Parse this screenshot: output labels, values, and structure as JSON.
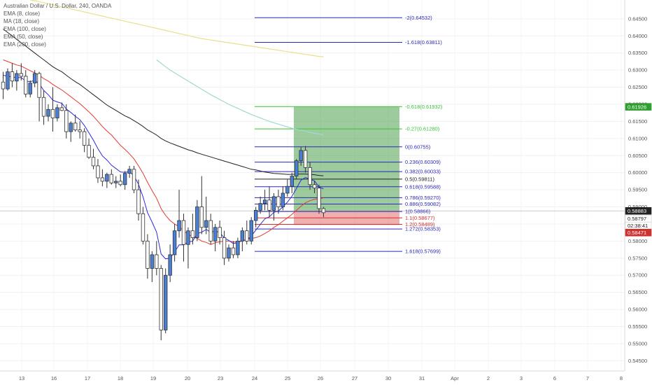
{
  "chart_data": {
    "type": "candlestick",
    "title": "Australian Dollar / U.S. Dollar, 240, OANDA",
    "indicators": [
      {
        "label": "EMA (8, close)",
        "color": "#2a2ae0"
      },
      {
        "label": "MA (18, close)",
        "color": "#e23b2e"
      },
      {
        "label": "EMA (100, close)",
        "color": "#222222"
      },
      {
        "label": "EMA (50, close)",
        "color": "#9fd9d1"
      },
      {
        "label": "EMA (200, close)",
        "color": "#e8e08a"
      }
    ],
    "ylim": [
      0.542,
      0.6505
    ],
    "yticks": [
      "0.64500",
      "0.64000",
      "0.63500",
      "0.63000",
      "0.62500",
      "0.62000",
      "0.61500",
      "0.61000",
      "0.60500",
      "0.60000",
      "0.59500",
      "0.59000",
      "0.58500",
      "0.58000",
      "0.57500",
      "0.57000",
      "0.56500",
      "0.56000",
      "0.55500",
      "0.55000",
      "0.54500"
    ],
    "xticks": [
      "13",
      "16",
      "17",
      "18",
      "19",
      "20",
      "23",
      "24",
      "25",
      "26",
      "27",
      "30",
      "31",
      "Apr",
      "2",
      "3",
      "6",
      "7",
      "8"
    ],
    "price_tags": [
      {
        "label": "0.61926",
        "value": 0.61926,
        "color": "#2e9e2e"
      },
      {
        "label": "0.58883",
        "value": 0.58883,
        "color": "#222222"
      },
      {
        "label": "0.58797",
        "value": 0.58797,
        "color": "#222222"
      },
      {
        "label": "02:38:41",
        "value": 0.58675,
        "color": "#222222"
      },
      {
        "label": "0.58471",
        "value": 0.58471,
        "color": "#d0312d"
      }
    ],
    "fib_levels": [
      {
        "label": "-2(0.64532)",
        "value": 0.64532,
        "color": "#2a2ab8"
      },
      {
        "label": "-1.618(0.63811)",
        "value": 0.63811,
        "color": "#2a2ab8"
      },
      {
        "label": "-0.618(0.61932)",
        "value": 0.61932,
        "color": "#35c235"
      },
      {
        "label": "-0.27(0.61280)",
        "value": 0.6128,
        "color": "#35c235"
      },
      {
        "label": "0(0.60755)",
        "value": 0.60755,
        "color": "#2a2ab8"
      },
      {
        "label": "0.236(0.60309)",
        "value": 0.60309,
        "color": "#2a2ab8"
      },
      {
        "label": "0.382(0.60033)",
        "value": 0.60033,
        "color": "#2a2ab8"
      },
      {
        "label": "0.5(0.59811)",
        "value": 0.59811,
        "color": "#222222"
      },
      {
        "label": "0.618(0.59588)",
        "value": 0.59588,
        "color": "#2a2ab8"
      },
      {
        "label": "0.786(0.59270)",
        "value": 0.5927,
        "color": "#2a2ab8"
      },
      {
        "label": "0.886(0.59082)",
        "value": 0.59082,
        "color": "#2a2ab8"
      },
      {
        "label": "1(0.58866)",
        "value": 0.58866,
        "color": "#2a2ab8"
      },
      {
        "label": "1.1(0.58677)",
        "value": 0.58677,
        "color": "#d0312d"
      },
      {
        "label": "1.2(0.58489)",
        "value": 0.58489,
        "color": "#d0312d"
      },
      {
        "label": "1.272(0.58353)",
        "value": 0.58353,
        "color": "#2a2ab8"
      },
      {
        "label": "1.618(0.57699)",
        "value": 0.57699,
        "color": "#2a2ab8"
      }
    ],
    "position_box": {
      "entry": 0.58883,
      "target": 0.61926,
      "stop": 0.58471
    },
    "candles": [
      {
        "o": 0.6265,
        "h": 0.6295,
        "l": 0.6215,
        "c": 0.6245
      },
      {
        "o": 0.6245,
        "h": 0.6305,
        "l": 0.624,
        "c": 0.6295
      },
      {
        "o": 0.6295,
        "h": 0.632,
        "l": 0.625,
        "c": 0.6268
      },
      {
        "o": 0.6268,
        "h": 0.63,
        "l": 0.624,
        "c": 0.629
      },
      {
        "o": 0.629,
        "h": 0.632,
        "l": 0.627,
        "c": 0.6282
      },
      {
        "o": 0.6282,
        "h": 0.63,
        "l": 0.622,
        "c": 0.623
      },
      {
        "o": 0.623,
        "h": 0.627,
        "l": 0.622,
        "c": 0.6262
      },
      {
        "o": 0.6262,
        "h": 0.63,
        "l": 0.625,
        "c": 0.629
      },
      {
        "o": 0.629,
        "h": 0.6295,
        "l": 0.615,
        "c": 0.622
      },
      {
        "o": 0.622,
        "h": 0.624,
        "l": 0.614,
        "c": 0.6165
      },
      {
        "o": 0.6165,
        "h": 0.62,
        "l": 0.615,
        "c": 0.6185
      },
      {
        "o": 0.6185,
        "h": 0.625,
        "l": 0.612,
        "c": 0.616
      },
      {
        "o": 0.616,
        "h": 0.62,
        "l": 0.615,
        "c": 0.619
      },
      {
        "o": 0.619,
        "h": 0.6205,
        "l": 0.618,
        "c": 0.6182
      },
      {
        "o": 0.6182,
        "h": 0.62,
        "l": 0.61,
        "c": 0.612
      },
      {
        "o": 0.612,
        "h": 0.615,
        "l": 0.609,
        "c": 0.6145
      },
      {
        "o": 0.6145,
        "h": 0.617,
        "l": 0.612,
        "c": 0.6125
      },
      {
        "o": 0.6125,
        "h": 0.615,
        "l": 0.61,
        "c": 0.612
      },
      {
        "o": 0.612,
        "h": 0.613,
        "l": 0.606,
        "c": 0.608
      },
      {
        "o": 0.608,
        "h": 0.61,
        "l": 0.604,
        "c": 0.6045
      },
      {
        "o": 0.6045,
        "h": 0.607,
        "l": 0.601,
        "c": 0.602
      },
      {
        "o": 0.602,
        "h": 0.604,
        "l": 0.597,
        "c": 0.5985
      },
      {
        "o": 0.5985,
        "h": 0.601,
        "l": 0.596,
        "c": 0.5975
      },
      {
        "o": 0.5975,
        "h": 0.6,
        "l": 0.5955,
        "c": 0.5995
      },
      {
        "o": 0.5995,
        "h": 0.601,
        "l": 0.5965,
        "c": 0.597
      },
      {
        "o": 0.597,
        "h": 0.599,
        "l": 0.5955,
        "c": 0.5975
      },
      {
        "o": 0.5975,
        "h": 0.5995,
        "l": 0.596,
        "c": 0.5965
      },
      {
        "o": 0.5965,
        "h": 0.6005,
        "l": 0.595,
        "c": 0.5998
      },
      {
        "o": 0.5998,
        "h": 0.602,
        "l": 0.5985,
        "c": 0.601
      },
      {
        "o": 0.601,
        "h": 0.602,
        "l": 0.594,
        "c": 0.595
      },
      {
        "o": 0.595,
        "h": 0.598,
        "l": 0.586,
        "c": 0.588
      },
      {
        "o": 0.588,
        "h": 0.59,
        "l": 0.579,
        "c": 0.58
      },
      {
        "o": 0.58,
        "h": 0.582,
        "l": 0.569,
        "c": 0.572
      },
      {
        "o": 0.572,
        "h": 0.577,
        "l": 0.568,
        "c": 0.576
      },
      {
        "o": 0.576,
        "h": 0.58,
        "l": 0.57,
        "c": 0.572
      },
      {
        "o": 0.572,
        "h": 0.573,
        "l": 0.551,
        "c": 0.554
      },
      {
        "o": 0.554,
        "h": 0.572,
        "l": 0.553,
        "c": 0.57
      },
      {
        "o": 0.57,
        "h": 0.579,
        "l": 0.568,
        "c": 0.576
      },
      {
        "o": 0.576,
        "h": 0.585,
        "l": 0.574,
        "c": 0.583
      },
      {
        "o": 0.583,
        "h": 0.595,
        "l": 0.581,
        "c": 0.586
      },
      {
        "o": 0.586,
        "h": 0.588,
        "l": 0.574,
        "c": 0.579
      },
      {
        "o": 0.579,
        "h": 0.584,
        "l": 0.572,
        "c": 0.583
      },
      {
        "o": 0.583,
        "h": 0.588,
        "l": 0.579,
        "c": 0.581
      },
      {
        "o": 0.581,
        "h": 0.592,
        "l": 0.58,
        "c": 0.59
      },
      {
        "o": 0.59,
        "h": 0.599,
        "l": 0.582,
        "c": 0.584
      },
      {
        "o": 0.584,
        "h": 0.593,
        "l": 0.582,
        "c": 0.586
      },
      {
        "o": 0.586,
        "h": 0.588,
        "l": 0.579,
        "c": 0.58
      },
      {
        "o": 0.58,
        "h": 0.585,
        "l": 0.577,
        "c": 0.584
      },
      {
        "o": 0.584,
        "h": 0.586,
        "l": 0.579,
        "c": 0.581
      },
      {
        "o": 0.581,
        "h": 0.583,
        "l": 0.573,
        "c": 0.575
      },
      {
        "o": 0.575,
        "h": 0.579,
        "l": 0.574,
        "c": 0.578
      },
      {
        "o": 0.578,
        "h": 0.58,
        "l": 0.575,
        "c": 0.576
      },
      {
        "o": 0.576,
        "h": 0.581,
        "l": 0.575,
        "c": 0.58
      },
      {
        "o": 0.58,
        "h": 0.584,
        "l": 0.577,
        "c": 0.583
      },
      {
        "o": 0.583,
        "h": 0.586,
        "l": 0.579,
        "c": 0.58
      },
      {
        "o": 0.58,
        "h": 0.587,
        "l": 0.579,
        "c": 0.586
      },
      {
        "o": 0.586,
        "h": 0.59,
        "l": 0.584,
        "c": 0.589
      },
      {
        "o": 0.589,
        "h": 0.593,
        "l": 0.588,
        "c": 0.591
      },
      {
        "o": 0.591,
        "h": 0.595,
        "l": 0.589,
        "c": 0.592
      },
      {
        "o": 0.592,
        "h": 0.596,
        "l": 0.587,
        "c": 0.589
      },
      {
        "o": 0.589,
        "h": 0.594,
        "l": 0.586,
        "c": 0.593
      },
      {
        "o": 0.593,
        "h": 0.595,
        "l": 0.588,
        "c": 0.59
      },
      {
        "o": 0.59,
        "h": 0.596,
        "l": 0.589,
        "c": 0.594
      },
      {
        "o": 0.594,
        "h": 0.598,
        "l": 0.593,
        "c": 0.596
      },
      {
        "o": 0.596,
        "h": 0.6,
        "l": 0.594,
        "c": 0.599
      },
      {
        "o": 0.599,
        "h": 0.604,
        "l": 0.598,
        "c": 0.6035
      },
      {
        "o": 0.6035,
        "h": 0.6075,
        "l": 0.602,
        "c": 0.6065
      },
      {
        "o": 0.6065,
        "h": 0.6078,
        "l": 0.6,
        "c": 0.6015
      },
      {
        "o": 0.6015,
        "h": 0.603,
        "l": 0.595,
        "c": 0.5965
      },
      {
        "o": 0.5965,
        "h": 0.5975,
        "l": 0.594,
        "c": 0.5955
      },
      {
        "o": 0.5955,
        "h": 0.5965,
        "l": 0.588,
        "c": 0.5895
      },
      {
        "o": 0.5895,
        "h": 0.59,
        "l": 0.587,
        "c": 0.5883
      }
    ],
    "ema8": [
      0.6285,
      0.6282,
      0.628,
      0.6278,
      0.6278,
      0.6268,
      0.6266,
      0.627,
      0.626,
      0.624,
      0.6228,
      0.6212,
      0.6207,
      0.6203,
      0.6186,
      0.6176,
      0.6165,
      0.6155,
      0.6138,
      0.6117,
      0.6095,
      0.607,
      0.6049,
      0.6037,
      0.6022,
      0.6012,
      0.6002,
      0.6001,
      0.6003,
      0.5991,
      0.5966,
      0.5929,
      0.5883,
      0.5856,
      0.5826,
      0.5762,
      0.5748,
      0.575,
      0.5768,
      0.5789,
      0.5789,
      0.5797,
      0.58,
      0.5822,
      0.5826,
      0.5834,
      0.5826,
      0.5829,
      0.5825,
      0.5809,
      0.5802,
      0.5793,
      0.5795,
      0.5803,
      0.5803,
      0.5815,
      0.5832,
      0.5849,
      0.5865,
      0.5871,
      0.5884,
      0.5888,
      0.59,
      0.5914,
      0.5931,
      0.5954,
      0.5978,
      0.5986,
      0.5981,
      0.5976,
      0.5958,
      0.5953
    ],
    "ma18": [
      0.633,
      0.6325,
      0.632,
      0.6315,
      0.6312,
      0.6305,
      0.6298,
      0.6292,
      0.6285,
      0.6275,
      0.6268,
      0.6258,
      0.625,
      0.6242,
      0.6232,
      0.6222,
      0.6212,
      0.6202,
      0.619,
      0.6178,
      0.6165,
      0.615,
      0.6135,
      0.6122,
      0.611,
      0.6095,
      0.608,
      0.6068,
      0.6055,
      0.604,
      0.602,
      0.5998,
      0.5972,
      0.5948,
      0.5925,
      0.5895,
      0.5875,
      0.586,
      0.585,
      0.5842,
      0.583,
      0.582,
      0.5812,
      0.5808,
      0.58,
      0.5796,
      0.579,
      0.5795,
      0.5798,
      0.58,
      0.58,
      0.5798,
      0.5797,
      0.58,
      0.5805,
      0.5808,
      0.581,
      0.5815,
      0.5822,
      0.583,
      0.584,
      0.5848,
      0.5858,
      0.5868,
      0.5878,
      0.589,
      0.5902,
      0.5912,
      0.5918,
      0.5922,
      0.5924,
      0.5926
    ],
    "ema100": [
      0.642,
      0.641,
      0.64,
      0.639,
      0.638,
      0.637,
      0.636,
      0.635,
      0.634,
      0.633,
      0.632,
      0.631,
      0.6302,
      0.6295,
      0.6285,
      0.6275,
      0.6266,
      0.6258,
      0.6248,
      0.6238,
      0.6228,
      0.6218,
      0.6208,
      0.6198,
      0.619,
      0.6182,
      0.6174,
      0.6166,
      0.616,
      0.6152,
      0.6144,
      0.6135,
      0.6125,
      0.6118,
      0.611,
      0.61,
      0.6093,
      0.6087,
      0.6082,
      0.6077,
      0.6072,
      0.6067,
      0.6063,
      0.6058,
      0.6054,
      0.605,
      0.6046,
      0.6042,
      0.6038,
      0.6034,
      0.603,
      0.6026,
      0.6022,
      0.6018,
      0.6014,
      0.601,
      0.6008,
      0.6005,
      0.6002,
      0.6,
      0.5998,
      0.5997,
      0.5996,
      0.5995,
      0.5995,
      0.5996,
      0.5996,
      0.5996,
      0.5995,
      0.5994,
      0.5992,
      0.5991
    ],
    "ema50_start_index": 34,
    "ema50": [
      0.633,
      0.632,
      0.631,
      0.63,
      0.6292,
      0.6284,
      0.6276,
      0.6268,
      0.626,
      0.6252,
      0.6244,
      0.6236,
      0.6228,
      0.6221,
      0.6214,
      0.6207,
      0.62,
      0.6194,
      0.6188,
      0.6182,
      0.6176,
      0.617,
      0.6165,
      0.616,
      0.6155,
      0.615,
      0.6146,
      0.6142,
      0.6138,
      0.6134,
      0.613,
      0.6127,
      0.6124,
      0.6121,
      0.6118,
      0.6115,
      0.6113,
      0.611
    ],
    "ema200_start_index": 6,
    "ema200": [
      0.6505,
      0.6503,
      0.65,
      0.6497,
      0.6494,
      0.6491,
      0.6488,
      0.6485,
      0.6482,
      0.6479,
      0.6476,
      0.6473,
      0.647,
      0.6467,
      0.6464,
      0.6461,
      0.6458,
      0.6455,
      0.6452,
      0.6449,
      0.6446,
      0.6443,
      0.644,
      0.6437,
      0.6434,
      0.6431,
      0.6428,
      0.6425,
      0.6422,
      0.6419,
      0.6416,
      0.6413,
      0.641,
      0.6407,
      0.6404,
      0.6401,
      0.6398,
      0.6395,
      0.6392,
      0.639,
      0.6388,
      0.6386,
      0.6384,
      0.6382,
      0.638,
      0.6378,
      0.6376,
      0.6374,
      0.6372,
      0.637,
      0.6368,
      0.6366,
      0.6364,
      0.6362,
      0.636,
      0.6358,
      0.6356,
      0.6354,
      0.6352,
      0.635,
      0.6348,
      0.6346,
      0.6344,
      0.6342,
      0.634,
      0.6339
    ]
  }
}
